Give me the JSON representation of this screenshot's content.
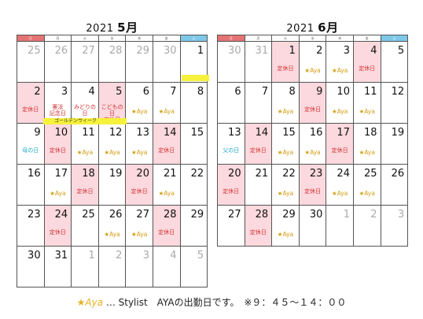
{
  "weekdays": [
    "日",
    "月",
    "火",
    "水",
    "木",
    "金",
    "土"
  ],
  "may": {
    "year": "2021",
    "month": "5月",
    "weeks": [
      [
        {
          "d": "25",
          "o": true
        },
        {
          "d": "26",
          "o": true
        },
        {
          "d": "27",
          "o": true
        },
        {
          "d": "28",
          "o": true
        },
        {
          "d": "29",
          "o": true
        },
        {
          "d": "30",
          "o": true
        },
        {
          "d": "1"
        }
      ],
      [
        {
          "d": "2",
          "p": true,
          "n": "定休日"
        },
        {
          "d": "3",
          "n": "憲法\n記念日",
          "h": true
        },
        {
          "d": "4",
          "n": "みどりの\n日",
          "h": true
        },
        {
          "d": "5",
          "p": true,
          "n": "こどもの日\n定休日",
          "h": true
        },
        {
          "d": "6",
          "a": true
        },
        {
          "d": "7",
          "a": true
        },
        {
          "d": "8"
        }
      ],
      [
        {
          "d": "9",
          "n": "母の日",
          "b": true
        },
        {
          "d": "10",
          "p": true,
          "n": "定休日"
        },
        {
          "d": "11",
          "a": true
        },
        {
          "d": "12",
          "a": true
        },
        {
          "d": "13",
          "a": true
        },
        {
          "d": "14",
          "p": true,
          "n": "定休日"
        },
        {
          "d": "15"
        }
      ],
      [
        {
          "d": "16"
        },
        {
          "d": "17",
          "a": true
        },
        {
          "d": "18",
          "p": true,
          "n": "定休日"
        },
        {
          "d": "19"
        },
        {
          "d": "20",
          "p": true,
          "n": "定休日"
        },
        {
          "d": "21",
          "a": true
        },
        {
          "d": "22"
        }
      ],
      [
        {
          "d": "23"
        },
        {
          "d": "24",
          "p": true,
          "n": "定休日"
        },
        {
          "d": "25"
        },
        {
          "d": "26",
          "a": true
        },
        {
          "d": "27",
          "a": true
        },
        {
          "d": "28",
          "p": true,
          "n": "定休日"
        },
        {
          "d": "29"
        }
      ],
      [
        {
          "d": "30"
        },
        {
          "d": "31"
        },
        {
          "d": "1",
          "o": true
        },
        {
          "d": "2",
          "o": true
        },
        {
          "d": "3",
          "o": true
        },
        {
          "d": "4",
          "o": true
        },
        {
          "d": "5",
          "o": true
        }
      ]
    ],
    "gw_label": "ゴールデンウィーク"
  },
  "june": {
    "year": "2021",
    "month": "6月",
    "weeks": [
      [
        {
          "d": "30",
          "o": true
        },
        {
          "d": "31",
          "o": true
        },
        {
          "d": "1",
          "p": true,
          "n": "定休日"
        },
        {
          "d": "2",
          "a": true
        },
        {
          "d": "3",
          "a": true
        },
        {
          "d": "4",
          "p": true,
          "n": "定休日"
        },
        {
          "d": "5"
        }
      ],
      [
        {
          "d": "6"
        },
        {
          "d": "7"
        },
        {
          "d": "8",
          "a": true
        },
        {
          "d": "9",
          "p": true,
          "n": "定休日"
        },
        {
          "d": "10",
          "a": true
        },
        {
          "d": "11",
          "a": true
        },
        {
          "d": "12"
        }
      ],
      [
        {
          "d": "13",
          "n": "父の日",
          "b": true
        },
        {
          "d": "14",
          "p": true,
          "n": "定休日"
        },
        {
          "d": "15",
          "a": true
        },
        {
          "d": "16",
          "a": true
        },
        {
          "d": "17",
          "p": true,
          "n": "定休日"
        },
        {
          "d": "18",
          "a": true
        },
        {
          "d": "19"
        }
      ],
      [
        {
          "d": "20",
          "p": true,
          "n": "定休日"
        },
        {
          "d": "21"
        },
        {
          "d": "22",
          "a": true
        },
        {
          "d": "23",
          "p": true,
          "n": "定休日"
        },
        {
          "d": "24",
          "a": true
        },
        {
          "d": "25",
          "a": true
        },
        {
          "d": "26"
        }
      ],
      [
        {
          "d": "27"
        },
        {
          "d": "28",
          "p": true,
          "n": "定休日"
        },
        {
          "d": "29",
          "a": true
        },
        {
          "d": "30"
        },
        {
          "d": "1",
          "o": true
        },
        {
          "d": "2",
          "o": true
        },
        {
          "d": "3",
          "o": true
        }
      ]
    ]
  },
  "aya_label": "★Aya",
  "footer": {
    "star": "★Aya",
    "text": " … Stylist　AYAの出勤日です。　※９：４５～１４：００"
  }
}
